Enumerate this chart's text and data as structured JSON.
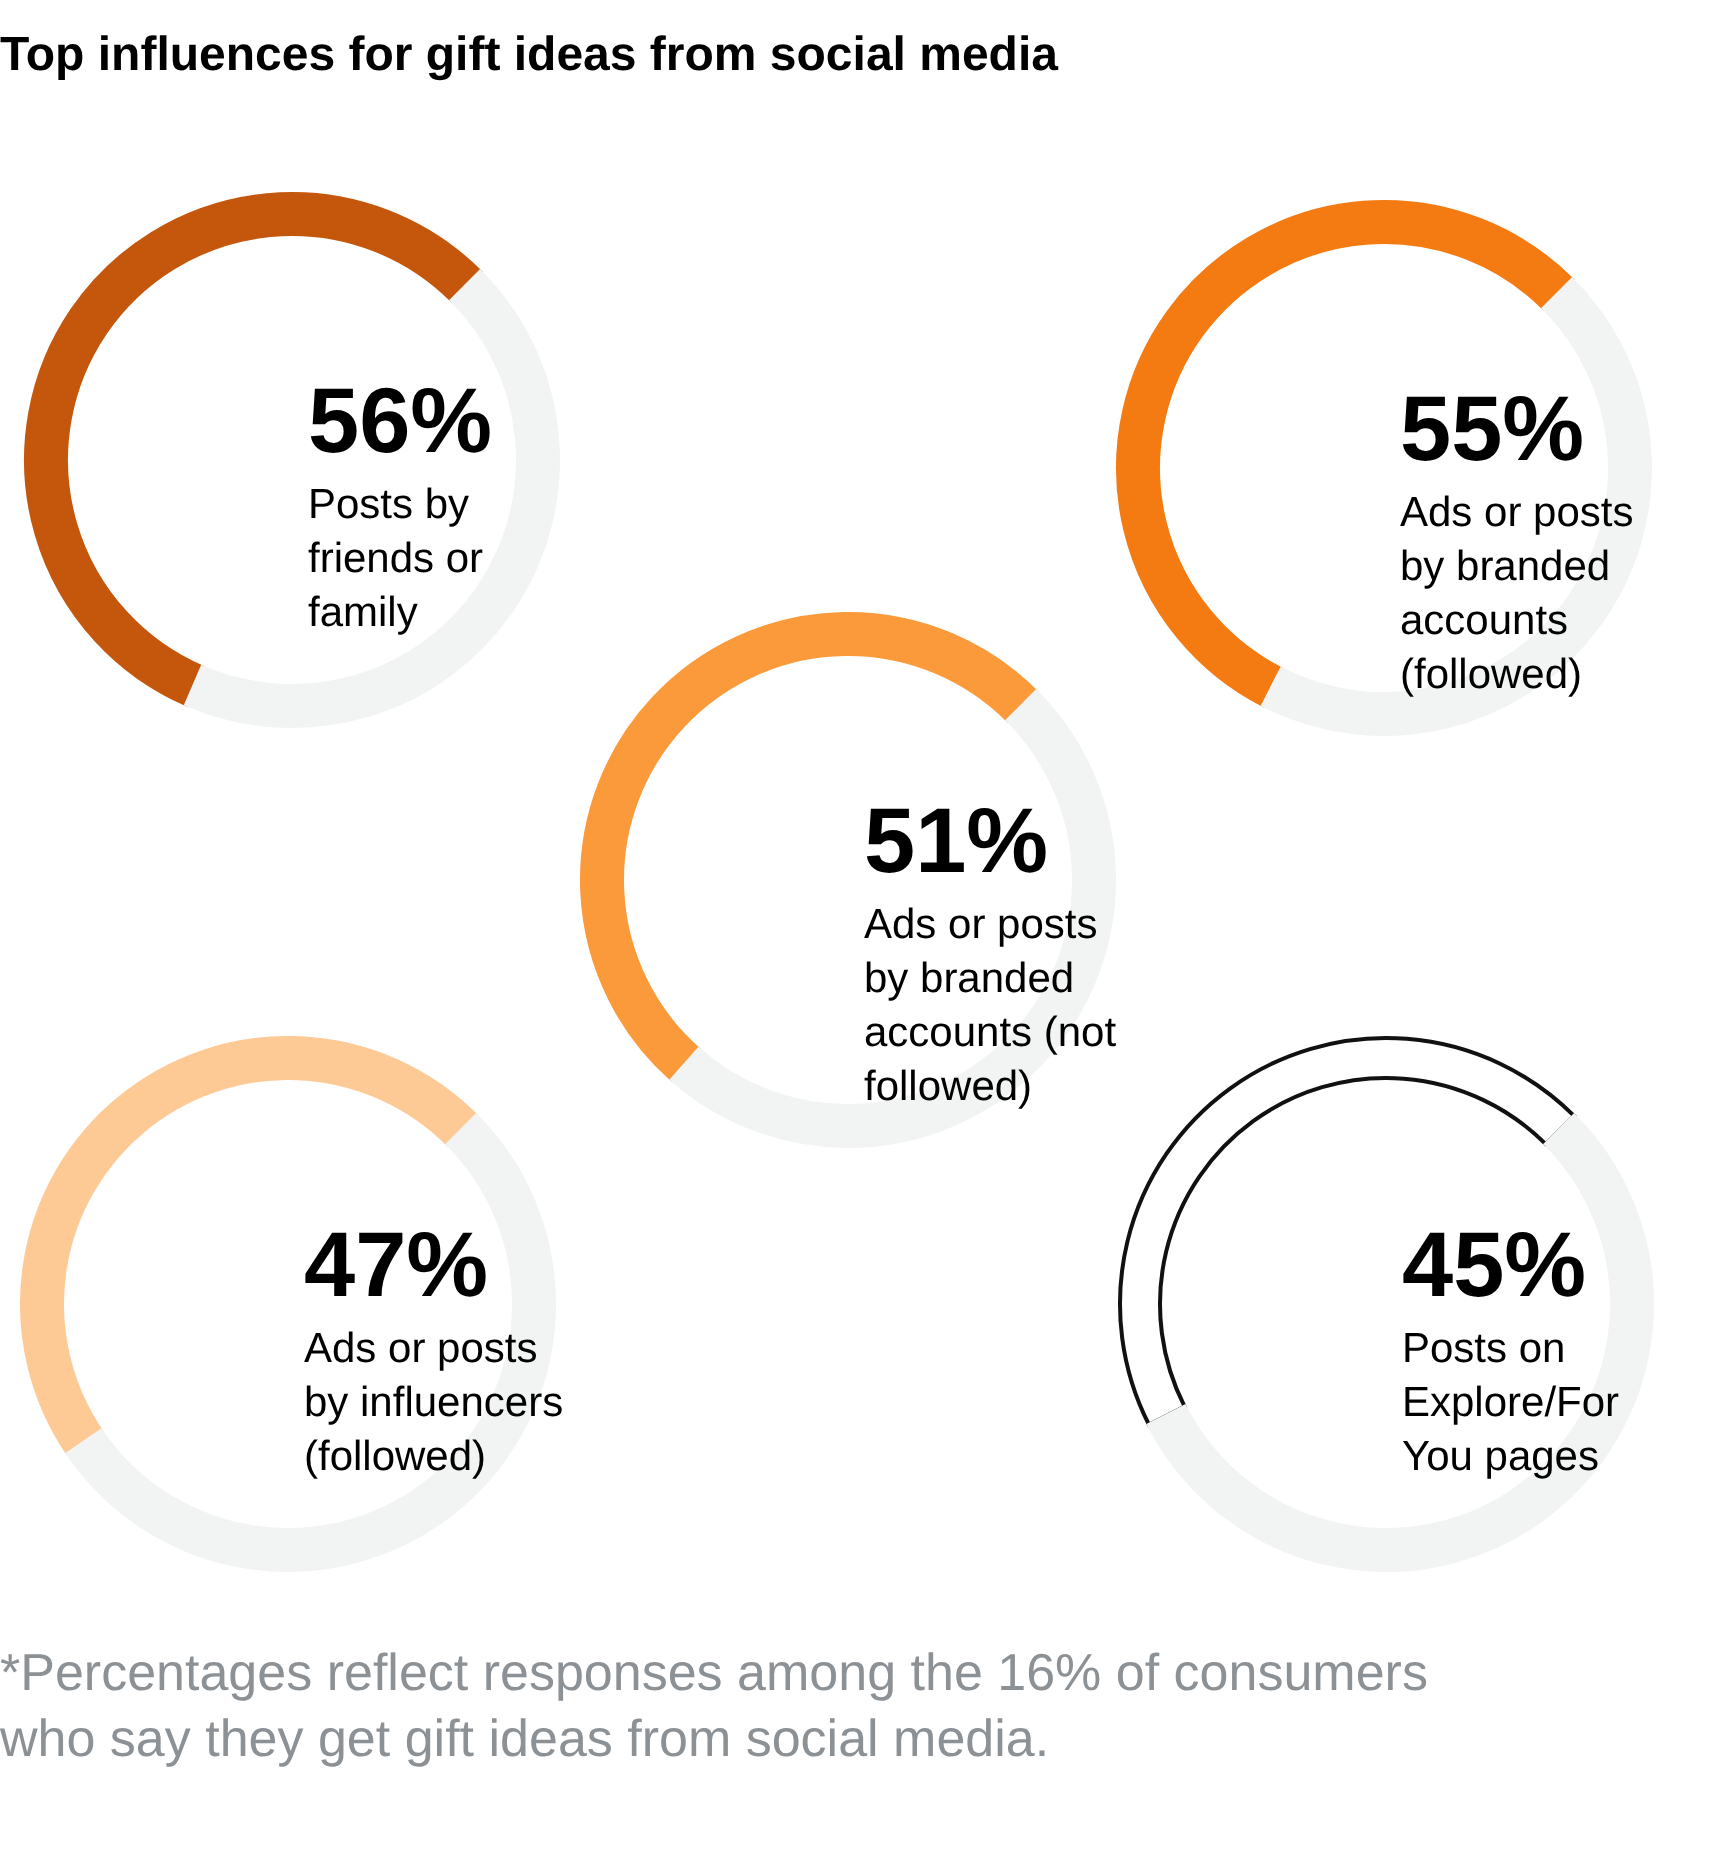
{
  "chart_data": [
    {
      "type": "donut",
      "title": "Top influences for gift ideas from social media",
      "categories": [
        null,
        null
      ],
      "values": [
        56,
        44
      ],
      "colors": [
        "#c4570c",
        "#f2f3f3"
      ],
      "annotations": [
        "56%",
        "Posts by\nfriends or\nfamily"
      ]
    },
    {
      "type": "donut",
      "categories": [
        null,
        null
      ],
      "values": [
        55,
        45
      ],
      "colors": [
        "#f47a12",
        "#f2f3f3"
      ],
      "annotations": [
        "55%",
        "Ads or posts\nby branded\naccounts\n(followed)"
      ]
    },
    {
      "type": "donut",
      "categories": [
        null,
        null
      ],
      "values": [
        51,
        49
      ],
      "colors": [
        "#fb9a3a",
        "#f2f3f3"
      ],
      "annotations": [
        "51%",
        "Ads or posts\nby branded\naccounts (not\nfollowed)"
      ]
    },
    {
      "type": "donut",
      "categories": [
        null,
        null
      ],
      "values": [
        47,
        53
      ],
      "colors": [
        "#fdc995",
        "#f2f3f3"
      ],
      "annotations": [
        "47%",
        "Ads or posts\nby influencers\n(followed)"
      ]
    },
    {
      "type": "donut",
      "categories": [
        null,
        null
      ],
      "values": [
        45,
        55
      ],
      "colors": [
        "#ffffff",
        "#f2f3f3"
      ],
      "annotations": [
        "45%",
        "Posts on\nExplore/For\nYou pages",
        "*Percentages reflect responses among the 16% of consumers\nwho say they get gift ideas from social media."
      ]
    }
  ]
}
